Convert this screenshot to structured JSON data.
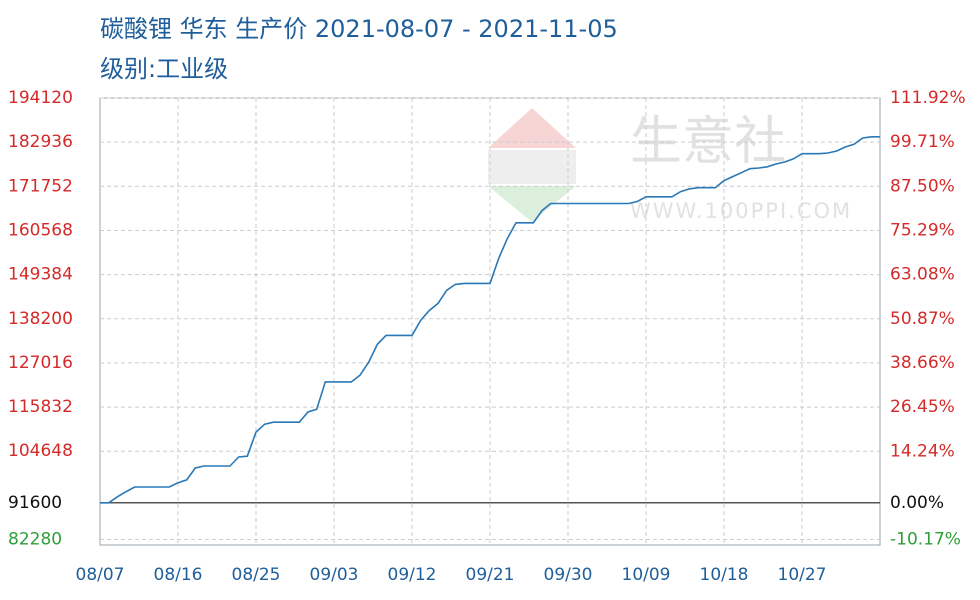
{
  "chart_data": {
    "type": "line",
    "title": "碳酸锂 华东 生产价 2021-08-07 - 2021-11-05",
    "subtitle": "级别:工业级",
    "watermark": {
      "name": "生意社",
      "url": "WWW.100PPI.COM"
    },
    "categories": [
      "08/07",
      null,
      null,
      null,
      null,
      null,
      null,
      null,
      null,
      "08/16",
      null,
      null,
      null,
      null,
      null,
      null,
      null,
      null,
      "08/25",
      null,
      null,
      null,
      null,
      null,
      null,
      null,
      null,
      "09/03",
      null,
      null,
      null,
      null,
      null,
      null,
      null,
      null,
      "09/12",
      null,
      null,
      null,
      null,
      null,
      null,
      null,
      null,
      "09/21",
      null,
      null,
      null,
      null,
      null,
      null,
      null,
      null,
      "09/30",
      null,
      null,
      null,
      null,
      null,
      null,
      null,
      null,
      "10/09",
      null,
      null,
      null,
      null,
      null,
      null,
      null,
      null,
      "10/18",
      null,
      null,
      null,
      null,
      null,
      null,
      null,
      null,
      "10/27",
      null,
      null,
      null,
      null,
      null,
      null,
      null,
      null,
      null
    ],
    "series": [
      {
        "color": "#2a78b5",
        "values": [
          91600,
          91600,
          93100,
          94400,
          95600,
          95600,
          95600,
          95600,
          95600,
          96650,
          97400,
          100400,
          100900,
          100900,
          100900,
          100900,
          103200,
          103400,
          109500,
          111500,
          112000,
          112000,
          112000,
          112000,
          114600,
          115300,
          122200,
          122200,
          122200,
          122200,
          123900,
          127200,
          131700,
          134000,
          134000,
          134000,
          134000,
          137800,
          140300,
          142100,
          145400,
          146900,
          147150,
          147150,
          147150,
          147150,
          153500,
          158500,
          162500,
          162500,
          162500,
          165600,
          167400,
          167400,
          167400,
          167400,
          167400,
          167400,
          167400,
          167400,
          167400,
          167400,
          167900,
          169100,
          169100,
          169100,
          169100,
          170400,
          171100,
          171400,
          171400,
          171400,
          173200,
          174200,
          175200,
          176200,
          176400,
          176700,
          177400,
          177900,
          178700,
          180000,
          180000,
          180000,
          180200,
          180700,
          181700,
          182400,
          184000,
          184300,
          184300
        ]
      }
    ],
    "ylim": [
      80900,
      194120
    ],
    "yticks": [
      194120,
      182936,
      171752,
      160568,
      149384,
      138200,
      127016,
      115832,
      104648,
      91600,
      82280
    ],
    "y2lim": [
      -11.68,
      111.92
    ],
    "y2ticks": [
      {
        "value": 111.92,
        "label": "111.92%"
      },
      {
        "value": 99.71,
        "label": "99.71%"
      },
      {
        "value": 87.5,
        "label": "87.50%"
      },
      {
        "value": 75.29,
        "label": "75.29%"
      },
      {
        "value": 63.08,
        "label": "63.08%"
      },
      {
        "value": 50.87,
        "label": "50.87%"
      },
      {
        "value": 38.66,
        "label": "38.66%"
      },
      {
        "value": 26.45,
        "label": "26.45%"
      },
      {
        "value": 14.24,
        "label": "14.24%"
      },
      {
        "value": 0,
        "label": "0.00%"
      },
      {
        "value": -10.17,
        "label": "-10.17%"
      }
    ],
    "grid": true,
    "up_color": "#d42a2a",
    "down_color": "#2e9e3a",
    "base_color": "#111111"
  }
}
